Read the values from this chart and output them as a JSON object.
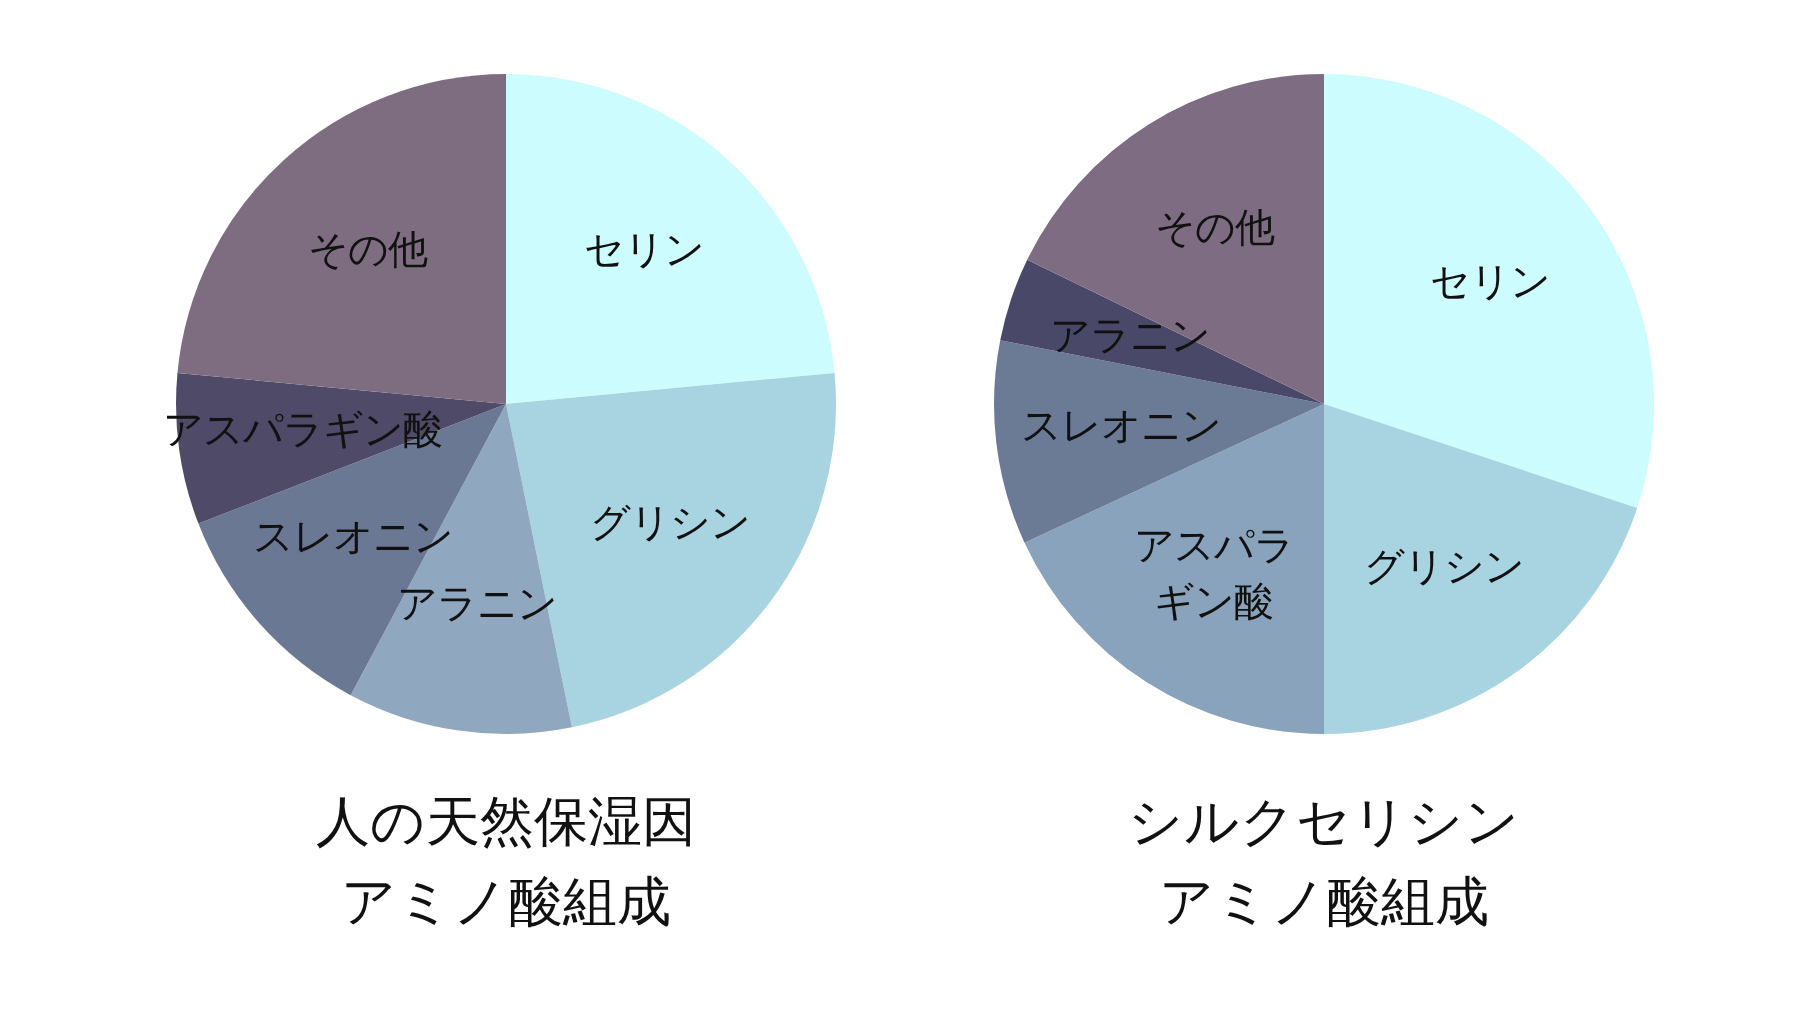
{
  "chart_data": [
    {
      "type": "pie",
      "title": "人の天然保湿因アミノ酸組成",
      "categories": [
        "セリン",
        "グリシン",
        "アラニン",
        "スレオニン",
        "アスパラギン酸",
        "その他"
      ],
      "values": [
        23.5,
        23.3,
        11,
        11.3,
        7.4,
        23.5
      ],
      "colors": [
        "#cdfcff",
        "#a8d3e0",
        "#8fa7bf",
        "#6b7893",
        "#4f4a68",
        "#7e6d80"
      ],
      "legend": false
    },
    {
      "type": "pie",
      "title": "シルクセリシンアミノ酸組成",
      "categories": [
        "セリン",
        "グリシン",
        "アスパラギン酸",
        "スレオニン",
        "アラニン",
        "その他"
      ],
      "values": [
        30.1,
        19.9,
        18.1,
        10,
        4.1,
        17.8
      ],
      "colors": [
        "#cdfcff",
        "#a8d3e0",
        "#89a3bc",
        "#6b7b96",
        "#4a4868",
        "#7e6d82"
      ],
      "legend": false
    }
  ]
}
